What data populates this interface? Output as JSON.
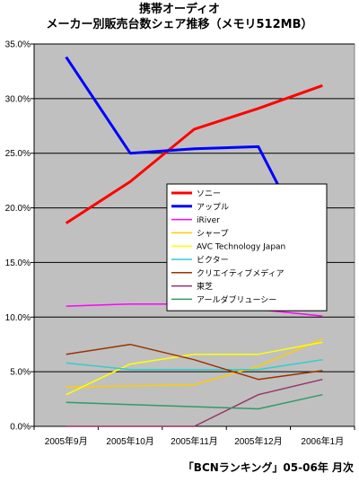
{
  "title": {
    "line1": "携帯オーディオ",
    "line2": "メーカー別販売台数シェア推移（メモリ512MB）"
  },
  "source": "「BCNランキング」05-06年 月次",
  "chart_data": {
    "type": "line",
    "categories": [
      "2005年9月",
      "2005年10月",
      "2005年11月",
      "2005年12月",
      "2006年1月"
    ],
    "ylim": [
      0,
      35
    ],
    "yticks": [
      0,
      5,
      10,
      15,
      20,
      25,
      30,
      35
    ],
    "ytick_labels": [
      "0.0%",
      "5.0%",
      "10.0%",
      "15.0%",
      "20.0%",
      "25.0%",
      "30.0%",
      "35.0%"
    ],
    "grid": true,
    "legend_position": "inside-right",
    "plot_background": "#c0c0c0",
    "series": [
      {
        "name": "ソニー",
        "color": "#ff0000",
        "width": 3,
        "values": [
          18.6,
          22.4,
          27.2,
          29.1,
          31.2
        ]
      },
      {
        "name": "アップル",
        "color": "#0000ff",
        "width": 3,
        "values": [
          33.8,
          25.0,
          25.4,
          25.6,
          14.2
        ]
      },
      {
        "name": "iRiver",
        "color": "#ff00ff",
        "width": 1.5,
        "values": [
          11.0,
          11.2,
          11.2,
          10.7,
          10.1
        ]
      },
      {
        "name": "シャープ",
        "color": "#ffcc00",
        "width": 1.5,
        "values": [
          3.6,
          3.7,
          3.8,
          5.5,
          8.0
        ]
      },
      {
        "name": "AVC Technology Japan",
        "color": "#ffff00",
        "width": 1.5,
        "values": [
          2.9,
          5.7,
          6.6,
          6.6,
          7.7
        ]
      },
      {
        "name": "ビクター",
        "color": "#33cccc",
        "width": 1.5,
        "values": [
          5.8,
          5.2,
          5.2,
          5.2,
          6.1
        ]
      },
      {
        "name": "クリエイティブメディア",
        "color": "#993300",
        "width": 1.5,
        "values": [
          6.6,
          7.5,
          6.1,
          4.3,
          5.1
        ]
      },
      {
        "name": "東芝",
        "color": "#993366",
        "width": 1.5,
        "values": [
          0.0,
          0.0,
          0.0,
          2.9,
          4.3
        ]
      },
      {
        "name": "アールダブリューシー",
        "color": "#339966",
        "width": 1.5,
        "values": [
          2.2,
          2.0,
          1.8,
          1.6,
          2.9
        ]
      }
    ]
  }
}
